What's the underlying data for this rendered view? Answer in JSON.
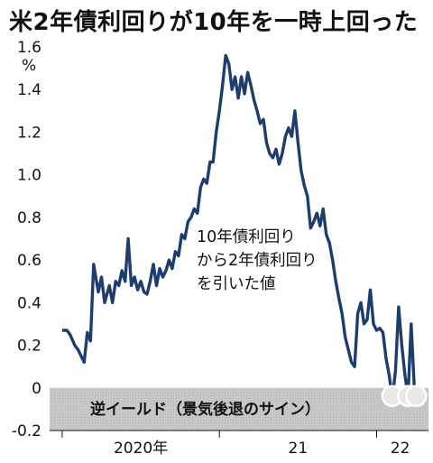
{
  "title": "米2年債利回りが10年を一時上回った",
  "annotation_lines": [
    "10年債利回り",
    "から2年債利回り",
    "を引いた値"
  ],
  "inversion_label": "逆イールド（景気後退のサイン）",
  "colors": {
    "line": "#1d3d6f",
    "band": "#c8c8c8",
    "band_hatch": "#a9a9a9",
    "marker": "#e8e8e8"
  },
  "chart_data": {
    "type": "line",
    "title": "米2年債利回りが10年を一時上回った",
    "y_unit": "%",
    "ylim": [
      -0.2,
      1.6
    ],
    "yticks": [
      -0.2,
      0,
      0.2,
      0.4,
      0.6,
      0.8,
      1.0,
      1.2,
      1.4,
      1.6
    ],
    "ytick_labels": [
      "-0.2",
      "0",
      "0.2",
      "0.4",
      "0.6",
      "0.8",
      "1.0",
      "1.2",
      "1.4",
      "1.6"
    ],
    "xlim": [
      2019.92,
      2022.33
    ],
    "xticks": [
      2020.0,
      2021.0,
      2022.0
    ],
    "x_label_positions": [
      2020.5,
      2021.5,
      2022.15
    ],
    "xtick_labels": [
      "2020年",
      "21",
      "22"
    ],
    "negative_band": [
      -0.2,
      0
    ],
    "series": [
      {
        "x": [
          2020.0,
          2020.03,
          2020.05,
          2020.08,
          2020.1,
          2020.12,
          2020.14,
          2020.16,
          2020.18,
          2020.2,
          2020.23,
          2020.25,
          2020.27,
          2020.3,
          2020.32,
          2020.34,
          2020.36,
          2020.38,
          2020.4,
          2020.42,
          2020.44,
          2020.46,
          2020.48,
          2020.5,
          2020.52,
          2020.54,
          2020.56,
          2020.58,
          2020.6,
          2020.62,
          2020.64,
          2020.66,
          2020.68,
          2020.7,
          2020.72,
          2020.74,
          2020.76,
          2020.78,
          2020.8,
          2020.82,
          2020.84,
          2020.86,
          2020.88,
          2020.9,
          2020.92,
          2020.94,
          2020.96,
          2020.98,
          2021.0,
          2021.02,
          2021.04,
          2021.06,
          2021.08,
          2021.1,
          2021.12,
          2021.14,
          2021.16,
          2021.18,
          2021.2,
          2021.22,
          2021.24,
          2021.26,
          2021.28,
          2021.3,
          2021.32,
          2021.34,
          2021.36,
          2021.38,
          2021.4,
          2021.42,
          2021.44,
          2021.46,
          2021.48,
          2021.5,
          2021.52,
          2021.54,
          2021.56,
          2021.58,
          2021.6,
          2021.62,
          2021.64,
          2021.66,
          2021.68,
          2021.7,
          2021.72,
          2021.74,
          2021.76,
          2021.78,
          2021.8,
          2021.82,
          2021.84,
          2021.86,
          2021.88,
          2021.9,
          2021.92,
          2021.94,
          2021.96,
          2021.98,
          2022.0,
          2022.02,
          2022.04,
          2022.06,
          2022.08,
          2022.1,
          2022.12,
          2022.14,
          2022.16,
          2022.18,
          2022.2,
          2022.22,
          2022.24
        ],
        "values": [
          0.27,
          0.27,
          0.25,
          0.2,
          0.18,
          0.15,
          0.12,
          0.26,
          0.22,
          0.58,
          0.45,
          0.52,
          0.4,
          0.48,
          0.4,
          0.5,
          0.48,
          0.55,
          0.5,
          0.7,
          0.48,
          0.52,
          0.46,
          0.5,
          0.45,
          0.44,
          0.5,
          0.58,
          0.48,
          0.56,
          0.52,
          0.55,
          0.6,
          0.56,
          0.64,
          0.62,
          0.72,
          0.7,
          0.78,
          0.8,
          0.84,
          0.82,
          0.94,
          0.98,
          0.96,
          1.06,
          1.06,
          1.2,
          1.3,
          1.42,
          1.56,
          1.52,
          1.4,
          1.46,
          1.36,
          1.46,
          1.38,
          1.48,
          1.42,
          1.35,
          1.3,
          1.24,
          1.26,
          1.15,
          1.1,
          1.08,
          1.12,
          1.05,
          1.1,
          1.18,
          1.22,
          1.18,
          1.3,
          1.15,
          1.02,
          0.95,
          0.9,
          0.75,
          0.78,
          0.82,
          0.76,
          0.84,
          0.72,
          0.68,
          0.6,
          0.5,
          0.42,
          0.35,
          0.24,
          0.18,
          0.12,
          0.1,
          0.35,
          0.4,
          0.3,
          0.32,
          0.46,
          0.3,
          0.27,
          0.28,
          0.26,
          0.14,
          0.06,
          -0.05,
          0.08,
          0.38,
          0.2,
          0.06,
          -0.04,
          0.3,
          0.0
        ]
      }
    ]
  }
}
